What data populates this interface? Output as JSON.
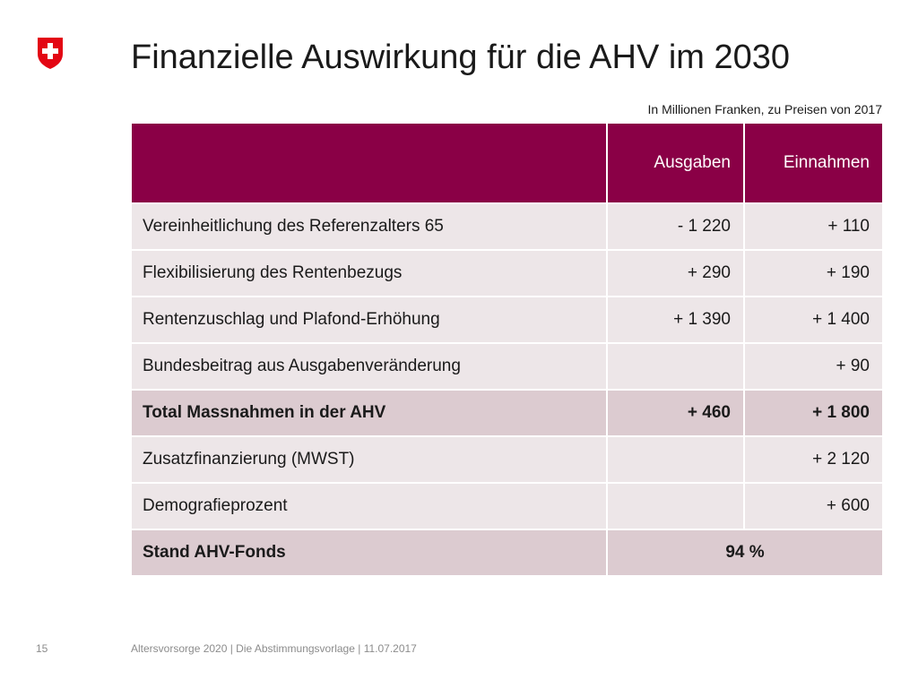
{
  "logo": {
    "icon": "swiss-cross-shield-icon",
    "color": "#e30613"
  },
  "title": "Finanzielle Auswirkung für die AHV im 2030",
  "unit_note": "In Millionen Franken, zu Preisen von 2017",
  "table": {
    "header": {
      "label": "",
      "ausgaben": "Ausgaben",
      "einnahmen": "Einnahmen"
    },
    "rows": [
      {
        "label": "Vereinheitlichung des Referenzalters 65",
        "ausgaben": "- 1 220",
        "einnahmen": "+ 110"
      },
      {
        "label": "Flexibilisierung des Rentenbezugs",
        "ausgaben": "+ 290",
        "einnahmen": "+ 190"
      },
      {
        "label": "Rentenzuschlag und Plafond-Erhöhung",
        "ausgaben": "+ 1 390",
        "einnahmen": "+ 1 400"
      },
      {
        "label": "Bundesbeitrag aus Ausgabenveränderung",
        "ausgaben": "",
        "einnahmen": "+ 90"
      },
      {
        "label": "Total Massnahmen in der AHV",
        "ausgaben": "+ 460",
        "einnahmen": "+ 1 800"
      },
      {
        "label": "Zusatzfinanzierung (MWST)",
        "ausgaben": "",
        "einnahmen": "+ 2 120"
      },
      {
        "label": "Demografieprozent",
        "ausgaben": "",
        "einnahmen": "+ 600"
      }
    ],
    "final_row": {
      "label": "Stand AHV-Fonds",
      "value": "94 %"
    }
  },
  "colors": {
    "header_bg": "#8a0046",
    "row_bg": "#ede6e8",
    "total_bg": "#dccbd0"
  },
  "footer": {
    "page_number": "15",
    "text": "Altersvorsorge 2020 | Die Abstimmungsvorlage | 11.07.2017"
  }
}
